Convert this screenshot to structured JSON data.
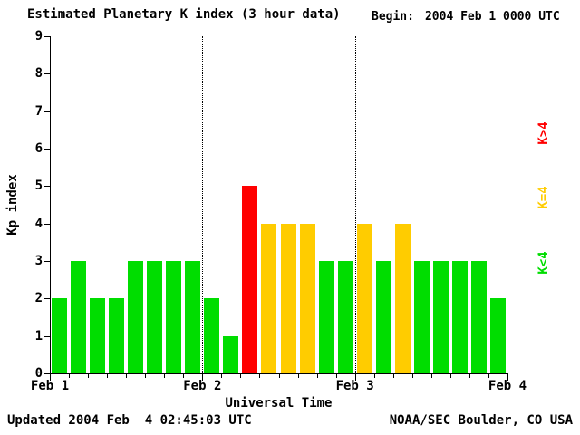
{
  "title": "Estimated Planetary K index (3 hour data)",
  "begin": {
    "label": "Begin:",
    "value": "2004 Feb 1 0000 UTC"
  },
  "footer": {
    "updated": "Updated 2004 Feb  4 02:45:03 UTC",
    "source": "NOAA/SEC Boulder, CO USA"
  },
  "legend": [
    {
      "label": "K>4",
      "color": "#ff0000"
    },
    {
      "label": "K=4",
      "color": "#ffcc00"
    },
    {
      "label": "K<4",
      "color": "#00dd00"
    }
  ],
  "chart_data": {
    "type": "bar",
    "title": "Estimated Planetary K index (3 hour data)",
    "xlabel": "Universal Time",
    "ylabel": "Kp index",
    "ylim": [
      0,
      9
    ],
    "yticks": [
      0,
      1,
      2,
      3,
      4,
      5,
      6,
      7,
      8,
      9
    ],
    "x_day_labels": [
      "Feb 1",
      "Feb 2",
      "Feb 3",
      "Feb 4"
    ],
    "bars_per_day": 8,
    "interval_hours": 3,
    "values": [
      2,
      3,
      2,
      2,
      3,
      3,
      3,
      3,
      2,
      1,
      5,
      4,
      4,
      4,
      3,
      3,
      4,
      3,
      4,
      3,
      3,
      3,
      3,
      2
    ],
    "color_rule": {
      "lt4": "#00dd00",
      "eq4": "#ffcc00",
      "gt4": "#ff0000"
    },
    "grid": "dotted vertical lines at interior day boundaries",
    "legend_position": "right side, rotated 90deg"
  }
}
